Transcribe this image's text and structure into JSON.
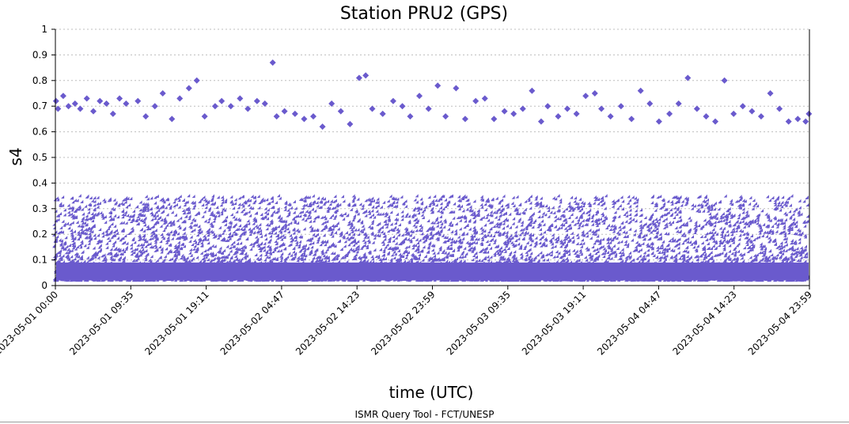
{
  "chart_data": {
    "type": "scatter",
    "title": "Station PRU2 (GPS)",
    "xlabel": "time (UTC)",
    "ylabel": "s4",
    "ylim": [
      0,
      1
    ],
    "yticks": [
      0,
      0.1,
      0.2,
      0.3,
      0.4,
      0.5,
      0.6,
      0.7,
      0.8,
      0.9,
      1
    ],
    "ytick_labels": [
      "0",
      "0.1",
      "0.2",
      "0.3",
      "0.4",
      "0.5",
      "0.6",
      "0.7",
      "0.8",
      "0.9",
      "1"
    ],
    "xlim": [
      "2023-05-01 00:00",
      "2023-05-04 23:59"
    ],
    "xtick_labels": [
      "2023-05-01 00:00",
      "2023-05-01 09:35",
      "2023-05-01 19:11",
      "2023-05-02 04:47",
      "2023-05-02 14:23",
      "2023-05-02 23:59",
      "2023-05-03 09:35",
      "2023-05-03 19:11",
      "2023-05-04 04:47",
      "2023-05-04 14:23",
      "2023-05-04 23:59"
    ],
    "grid": "horizontal dotted",
    "marker": "diamond",
    "series": [
      {
        "color": "#6a5acd",
        "x": [
          "2023-05-01 00:05",
          "2023-05-01 00:20",
          "2023-05-01 01:00",
          "2023-05-01 01:40",
          "2023-05-01 02:30",
          "2023-05-01 03:10",
          "2023-05-01 04:00",
          "2023-05-01 04:50",
          "2023-05-01 05:40",
          "2023-05-01 06:30",
          "2023-05-01 07:20",
          "2023-05-01 08:10",
          "2023-05-01 09:00",
          "2023-05-01 10:30",
          "2023-05-01 11:30",
          "2023-05-01 12:40",
          "2023-05-01 13:40",
          "2023-05-01 14:50",
          "2023-05-01 15:50",
          "2023-05-01 17:00",
          "2023-05-01 18:00",
          "2023-05-01 19:00",
          "2023-05-01 20:20",
          "2023-05-01 21:10",
          "2023-05-01 22:20",
          "2023-05-01 23:30",
          "2023-05-02 00:30",
          "2023-05-02 01:40",
          "2023-05-02 02:40",
          "2023-05-02 03:40",
          "2023-05-02 04:10",
          "2023-05-02 05:10",
          "2023-05-02 06:30",
          "2023-05-02 07:40",
          "2023-05-02 08:50",
          "2023-05-02 10:00",
          "2023-05-02 11:10",
          "2023-05-02 12:20",
          "2023-05-02 13:30",
          "2023-05-02 14:40",
          "2023-05-02 15:30",
          "2023-05-02 16:20",
          "2023-05-02 17:40",
          "2023-05-02 19:00",
          "2023-05-02 20:10",
          "2023-05-02 21:10",
          "2023-05-02 22:20",
          "2023-05-02 23:30",
          "2023-05-03 00:40",
          "2023-05-03 01:40",
          "2023-05-03 03:00",
          "2023-05-03 04:10",
          "2023-05-03 05:30",
          "2023-05-03 06:40",
          "2023-05-03 07:50",
          "2023-05-03 09:10",
          "2023-05-03 10:20",
          "2023-05-03 11:30",
          "2023-05-03 12:40",
          "2023-05-03 13:50",
          "2023-05-03 14:40",
          "2023-05-03 16:00",
          "2023-05-03 17:10",
          "2023-05-03 18:20",
          "2023-05-03 19:30",
          "2023-05-03 20:40",
          "2023-05-03 21:30",
          "2023-05-03 22:40",
          "2023-05-04 00:00",
          "2023-05-04 01:20",
          "2023-05-04 02:30",
          "2023-05-04 03:40",
          "2023-05-04 04:50",
          "2023-05-04 06:10",
          "2023-05-04 07:20",
          "2023-05-04 08:30",
          "2023-05-04 09:40",
          "2023-05-04 10:50",
          "2023-05-04 12:00",
          "2023-05-04 13:10",
          "2023-05-04 14:20",
          "2023-05-04 15:30",
          "2023-05-04 16:40",
          "2023-05-04 17:50",
          "2023-05-04 19:00",
          "2023-05-04 20:10",
          "2023-05-04 21:20",
          "2023-05-04 22:30",
          "2023-05-04 23:30",
          "2023-05-04 23:55"
        ],
        "y": [
          0.72,
          0.69,
          0.74,
          0.7,
          0.71,
          0.69,
          0.73,
          0.68,
          0.72,
          0.71,
          0.67,
          0.73,
          0.71,
          0.72,
          0.66,
          0.7,
          0.75,
          0.65,
          0.73,
          0.77,
          0.8,
          0.66,
          0.7,
          0.72,
          0.7,
          0.73,
          0.69,
          0.72,
          0.71,
          0.87,
          0.66,
          0.68,
          0.67,
          0.65,
          0.66,
          0.62,
          0.71,
          0.68,
          0.63,
          0.81,
          0.82,
          0.69,
          0.67,
          0.72,
          0.7,
          0.66,
          0.74,
          0.69,
          0.78,
          0.66,
          0.77,
          0.65,
          0.72,
          0.73,
          0.65,
          0.68,
          0.67,
          0.69,
          0.76,
          0.64,
          0.7,
          0.66,
          0.69,
          0.67,
          0.74,
          0.75,
          0.69,
          0.66,
          0.7,
          0.65,
          0.76,
          0.71,
          0.64,
          0.67,
          0.71,
          0.81,
          0.69,
          0.66,
          0.64,
          0.8,
          0.67,
          0.7,
          0.68,
          0.66,
          0.75,
          0.69,
          0.64,
          0.65,
          0.64,
          0.67
        ]
      }
    ]
  },
  "footer": {
    "credit": "ISMR Query Tool - FCT/UNESP"
  }
}
